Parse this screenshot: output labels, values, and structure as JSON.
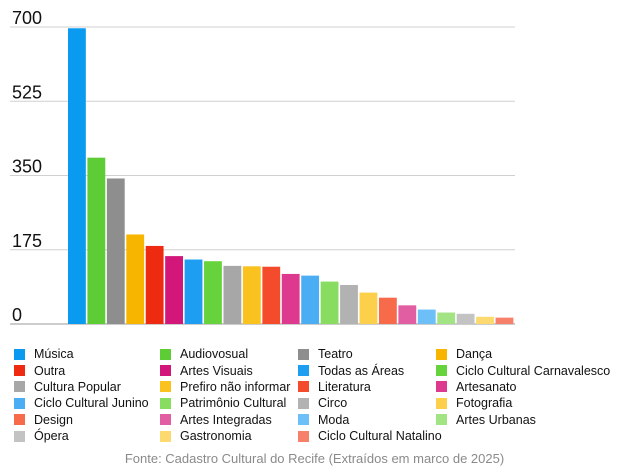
{
  "chart_data": {
    "type": "bar",
    "title": "",
    "xlabel": "",
    "ylabel": "",
    "ylim": [
      0,
      700
    ],
    "y_ticks": [
      0,
      175,
      350,
      525,
      700
    ],
    "grid": true,
    "legend_position": "bottom",
    "categories": [
      "Música",
      "Outra",
      "Cultura Popular",
      "Ciclo Cultural Junino",
      "Design",
      "Ópera",
      "Audiovosual",
      "Artes Visuais",
      "Prefiro não informar",
      "Patrimônio Cultural",
      "Artes Integradas",
      "Gastronomia",
      "Teatro",
      "Todas as Áreas",
      "Literatura",
      "Circo",
      "Moda",
      "Ciclo Cultural Natalino",
      "Dança",
      "Ciclo Cultural Carnavalesco",
      "Artesanato",
      "Fotografia",
      "Artes Urbanas"
    ],
    "bars": [
      {
        "label": "Música",
        "value": 697,
        "color": "#0a9bf0"
      },
      {
        "label": "Audiovosual",
        "value": 392,
        "color": "#5dcc35"
      },
      {
        "label": "Teatro",
        "value": 343,
        "color": "#8e8e8e"
      },
      {
        "label": "Dança",
        "value": 211,
        "color": "#f7b500"
      },
      {
        "label": "Outra",
        "value": 184,
        "color": "#ee2a10"
      },
      {
        "label": "Artes Visuais",
        "value": 160,
        "color": "#d2167a"
      },
      {
        "label": "Todas as Áreas",
        "value": 152,
        "color": "#1e9ef0"
      },
      {
        "label": "Ciclo Cultural Carnavalesco",
        "value": 148,
        "color": "#66d23c"
      },
      {
        "label": "Cultura Popular",
        "value": 137,
        "color": "#a7a7a7"
      },
      {
        "label": "Prefiro não informar",
        "value": 136,
        "color": "#fac21f"
      },
      {
        "label": "Literatura",
        "value": 135,
        "color": "#f44b2d"
      },
      {
        "label": "Artesanato",
        "value": 118,
        "color": "#dd3a8f"
      },
      {
        "label": "Ciclo Cultural Junino",
        "value": 114,
        "color": "#4baef5"
      },
      {
        "label": "Patrimônio Cultural",
        "value": 100,
        "color": "#88dd60"
      },
      {
        "label": "Circo",
        "value": 92,
        "color": "#b2b2b2"
      },
      {
        "label": "Fotografia",
        "value": 74,
        "color": "#fcd04a"
      },
      {
        "label": "Design",
        "value": 62,
        "color": "#f76a4a"
      },
      {
        "label": "Artes Integradas",
        "value": 44,
        "color": "#e15ea2"
      },
      {
        "label": "Moda",
        "value": 34,
        "color": "#6cbff7"
      },
      {
        "label": "Artes Urbanas",
        "value": 27,
        "color": "#a2e483"
      },
      {
        "label": "Ópera",
        "value": 24,
        "color": "#c3c3c3"
      },
      {
        "label": "Gastronomia",
        "value": 17,
        "color": "#fcda6f"
      },
      {
        "label": "Ciclo Cultural Natalino",
        "value": 15,
        "color": "#f7806a"
      }
    ],
    "legend": [
      {
        "label": "Música",
        "color": "#0a9bf0"
      },
      {
        "label": "Audiovosual",
        "color": "#5dcc35"
      },
      {
        "label": "Teatro",
        "color": "#8e8e8e"
      },
      {
        "label": "Dança",
        "color": "#f7b500"
      },
      {
        "label": "Outra",
        "color": "#ee2a10"
      },
      {
        "label": "Artes Visuais",
        "color": "#d2167a"
      },
      {
        "label": "Todas as Áreas",
        "color": "#1e9ef0"
      },
      {
        "label": "Ciclo Cultural Carnavalesco",
        "color": "#66d23c"
      },
      {
        "label": "Cultura Popular",
        "color": "#a7a7a7"
      },
      {
        "label": "Prefiro não informar",
        "color": "#fac21f"
      },
      {
        "label": "Literatura",
        "color": "#f44b2d"
      },
      {
        "label": "Artesanato",
        "color": "#dd3a8f"
      },
      {
        "label": "Ciclo Cultural Junino",
        "color": "#4baef5"
      },
      {
        "label": "Patrimônio Cultural",
        "color": "#88dd60"
      },
      {
        "label": "Circo",
        "color": "#b2b2b2"
      },
      {
        "label": "Fotografia",
        "color": "#fcd04a"
      },
      {
        "label": "Design",
        "color": "#f76a4a"
      },
      {
        "label": "Artes Integradas",
        "color": "#e15ea2"
      },
      {
        "label": "Moda",
        "color": "#6cbff7"
      },
      {
        "label": "Artes Urbanas",
        "color": "#a2e483"
      },
      {
        "label": "Ópera",
        "color": "#c3c3c3"
      },
      {
        "label": "Gastronomia",
        "color": "#fcda6f"
      },
      {
        "label": "Ciclo Cultural Natalino",
        "color": "#f7806a"
      }
    ]
  },
  "source_note": "Fonte: Cadastro Cultural do Recife (Extraídos em marco de 2025)"
}
